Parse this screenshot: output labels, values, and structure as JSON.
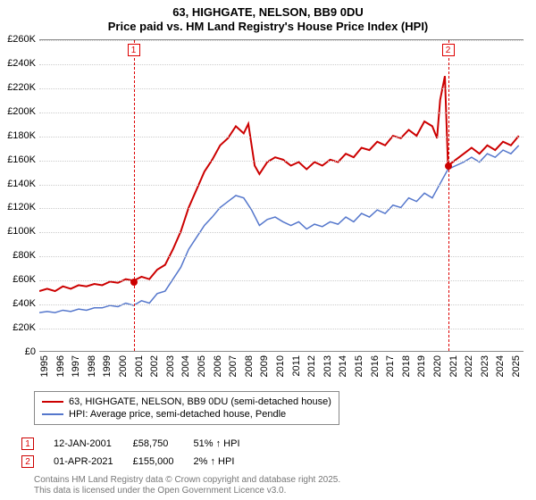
{
  "title": {
    "main": "63, HIGHGATE, NELSON, BB9 0DU",
    "sub": "Price paid vs. HM Land Registry's House Price Index (HPI)"
  },
  "chart": {
    "type": "line",
    "xlim": [
      1995,
      2025.8
    ],
    "ylim": [
      0,
      260000
    ],
    "ytick_step": 20000,
    "yticks": [
      "£0",
      "£20K",
      "£40K",
      "£60K",
      "£80K",
      "£100K",
      "£120K",
      "£140K",
      "£160K",
      "£180K",
      "£200K",
      "£220K",
      "£240K",
      "£260K"
    ],
    "xticks": [
      1995,
      1996,
      1997,
      1998,
      1999,
      2000,
      2001,
      2002,
      2003,
      2004,
      2005,
      2006,
      2007,
      2008,
      2009,
      2010,
      2011,
      2012,
      2013,
      2014,
      2015,
      2016,
      2017,
      2018,
      2019,
      2020,
      2021,
      2022,
      2023,
      2024,
      2025
    ],
    "background_color": "#ffffff",
    "grid_color": "#cccccc",
    "series": [
      {
        "name": "63, HIGHGATE, NELSON, BB9 0DU (semi-detached house)",
        "color": "#cc0000",
        "line_width": 2,
        "data": [
          [
            1995,
            50000
          ],
          [
            1995.5,
            52000
          ],
          [
            1996,
            50000
          ],
          [
            1996.5,
            54000
          ],
          [
            1997,
            52000
          ],
          [
            1997.5,
            55000
          ],
          [
            1998,
            54000
          ],
          [
            1998.5,
            56000
          ],
          [
            1999,
            55000
          ],
          [
            1999.5,
            58000
          ],
          [
            2000,
            57000
          ],
          [
            2000.5,
            60000
          ],
          [
            2001,
            58750
          ],
          [
            2001.5,
            62000
          ],
          [
            2002,
            60000
          ],
          [
            2002.5,
            68000
          ],
          [
            2003,
            72000
          ],
          [
            2003.5,
            85000
          ],
          [
            2004,
            100000
          ],
          [
            2004.5,
            120000
          ],
          [
            2005,
            135000
          ],
          [
            2005.5,
            150000
          ],
          [
            2006,
            160000
          ],
          [
            2006.5,
            172000
          ],
          [
            2007,
            178000
          ],
          [
            2007.5,
            188000
          ],
          [
            2008,
            182000
          ],
          [
            2008.3,
            190000
          ],
          [
            2008.7,
            155000
          ],
          [
            2009,
            148000
          ],
          [
            2009.5,
            158000
          ],
          [
            2010,
            162000
          ],
          [
            2010.5,
            160000
          ],
          [
            2011,
            155000
          ],
          [
            2011.5,
            158000
          ],
          [
            2012,
            152000
          ],
          [
            2012.5,
            158000
          ],
          [
            2013,
            155000
          ],
          [
            2013.5,
            160000
          ],
          [
            2014,
            158000
          ],
          [
            2014.5,
            165000
          ],
          [
            2015,
            162000
          ],
          [
            2015.5,
            170000
          ],
          [
            2016,
            168000
          ],
          [
            2016.5,
            175000
          ],
          [
            2017,
            172000
          ],
          [
            2017.5,
            180000
          ],
          [
            2018,
            178000
          ],
          [
            2018.5,
            185000
          ],
          [
            2019,
            180000
          ],
          [
            2019.5,
            192000
          ],
          [
            2020,
            188000
          ],
          [
            2020.3,
            178000
          ],
          [
            2020.5,
            210000
          ],
          [
            2020.8,
            230000
          ],
          [
            2021,
            155000
          ],
          [
            2021.5,
            160000
          ],
          [
            2022,
            165000
          ],
          [
            2022.5,
            170000
          ],
          [
            2023,
            165000
          ],
          [
            2023.5,
            172000
          ],
          [
            2024,
            168000
          ],
          [
            2024.5,
            175000
          ],
          [
            2025,
            172000
          ],
          [
            2025.5,
            180000
          ]
        ]
      },
      {
        "name": "HPI: Average price, semi-detached house, Pendle",
        "color": "#5577cc",
        "line_width": 1.5,
        "data": [
          [
            1995,
            32000
          ],
          [
            1995.5,
            33000
          ],
          [
            1996,
            32000
          ],
          [
            1996.5,
            34000
          ],
          [
            1997,
            33000
          ],
          [
            1997.5,
            35000
          ],
          [
            1998,
            34000
          ],
          [
            1998.5,
            36000
          ],
          [
            1999,
            36000
          ],
          [
            1999.5,
            38000
          ],
          [
            2000,
            37000
          ],
          [
            2000.5,
            40000
          ],
          [
            2001,
            38000
          ],
          [
            2001.5,
            42000
          ],
          [
            2002,
            40000
          ],
          [
            2002.5,
            48000
          ],
          [
            2003,
            50000
          ],
          [
            2003.5,
            60000
          ],
          [
            2004,
            70000
          ],
          [
            2004.5,
            85000
          ],
          [
            2005,
            95000
          ],
          [
            2005.5,
            105000
          ],
          [
            2006,
            112000
          ],
          [
            2006.5,
            120000
          ],
          [
            2007,
            125000
          ],
          [
            2007.5,
            130000
          ],
          [
            2008,
            128000
          ],
          [
            2008.5,
            118000
          ],
          [
            2009,
            105000
          ],
          [
            2009.5,
            110000
          ],
          [
            2010,
            112000
          ],
          [
            2010.5,
            108000
          ],
          [
            2011,
            105000
          ],
          [
            2011.5,
            108000
          ],
          [
            2012,
            102000
          ],
          [
            2012.5,
            106000
          ],
          [
            2013,
            104000
          ],
          [
            2013.5,
            108000
          ],
          [
            2014,
            106000
          ],
          [
            2014.5,
            112000
          ],
          [
            2015,
            108000
          ],
          [
            2015.5,
            115000
          ],
          [
            2016,
            112000
          ],
          [
            2016.5,
            118000
          ],
          [
            2017,
            115000
          ],
          [
            2017.5,
            122000
          ],
          [
            2018,
            120000
          ],
          [
            2018.5,
            128000
          ],
          [
            2019,
            125000
          ],
          [
            2019.5,
            132000
          ],
          [
            2020,
            128000
          ],
          [
            2020.5,
            140000
          ],
          [
            2021,
            152000
          ],
          [
            2021.5,
            155000
          ],
          [
            2022,
            158000
          ],
          [
            2022.5,
            162000
          ],
          [
            2023,
            158000
          ],
          [
            2023.5,
            165000
          ],
          [
            2024,
            162000
          ],
          [
            2024.5,
            168000
          ],
          [
            2025,
            165000
          ],
          [
            2025.5,
            172000
          ]
        ]
      }
    ],
    "markers": [
      {
        "label": "1",
        "x": 2001,
        "date": "12-JAN-2001",
        "price": "£58,750",
        "delta": "51% ↑ HPI",
        "point_y": 58750,
        "point_color": "#cc0000"
      },
      {
        "label": "2",
        "x": 2021,
        "date": "01-APR-2021",
        "price": "£155,000",
        "delta": "2% ↑ HPI",
        "point_y": 155000,
        "point_color": "#cc0000"
      }
    ]
  },
  "legend_title_1": "63, HIGHGATE, NELSON, BB9 0DU (semi-detached house)",
  "legend_title_2": "HPI: Average price, semi-detached house, Pendle",
  "footer": {
    "line1": "Contains HM Land Registry data © Crown copyright and database right 2025.",
    "line2": "This data is licensed under the Open Government Licence v3.0."
  }
}
